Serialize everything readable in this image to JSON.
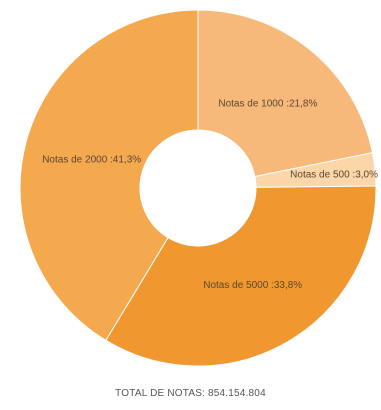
{
  "chart_data": {
    "type": "pie",
    "slices": [
      {
        "label": "Notas de 1000 :21,8%",
        "value": 21.8,
        "color": "#f6b97a"
      },
      {
        "label": "Notas de 500 :3,0%",
        "value": 3.0,
        "color": "#fbd6a8"
      },
      {
        "label": "Notas de 5000 :33,8%",
        "value": 33.8,
        "color": "#f0982f"
      },
      {
        "label": "Notas de 2000 :41,3%",
        "value": 41.3,
        "color": "#f5a94f"
      }
    ],
    "footer": "TOTAL DE NOTAS: 854.154.804"
  }
}
